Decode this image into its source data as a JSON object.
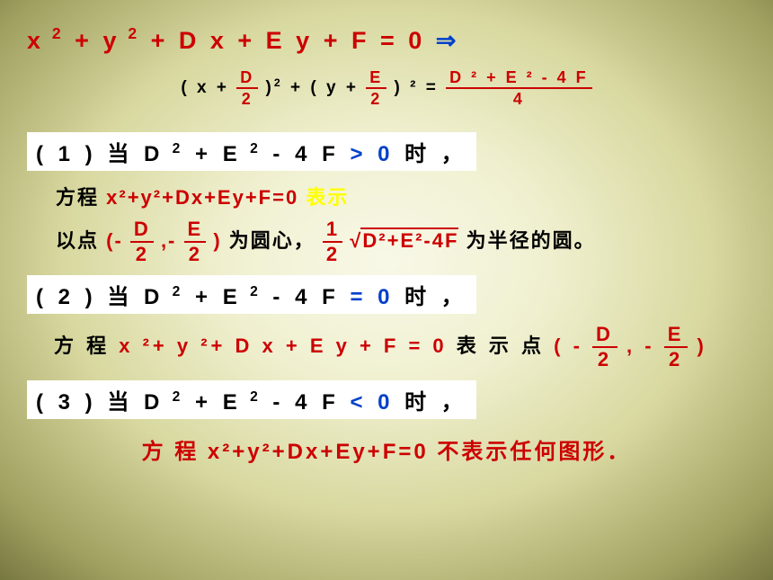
{
  "colors": {
    "red": "#cc0000",
    "blue": "#0040cc",
    "black": "#000000",
    "yellow": "#ffff00",
    "white_bg": "#ffffff"
  },
  "typography": {
    "main_eq_fontsize": 27,
    "frac_line_fontsize": 19,
    "case_fontsize": 24,
    "body_fontsize": 22,
    "final_fontsize": 24,
    "font_weight": "bold",
    "font_family": "Microsoft YaHei"
  },
  "bg_gradient": {
    "type": "radial",
    "center": "50% 45%",
    "stops": [
      "#f8f8e8",
      "#f0f0d0",
      "#d8d8a0",
      "#a0a060",
      "#606030",
      "#303018",
      "#0a0a05"
    ]
  },
  "eq_main_lhs": "x",
  "eq_main_t1": "+ y",
  "eq_main_t2": "+ D x + E y + F = 0 ",
  "implies": "⇒",
  "std_open1": "( x  +",
  "std_frac1_num": "D",
  "std_frac1_den": "2",
  "std_close1": ")",
  "std_plus": "+  ( y  +",
  "std_frac2_num": "E",
  "std_frac2_den": "2",
  "std_close2": ") ² =",
  "std_rhs_num": "D ² + E ² - 4  F",
  "std_rhs_den": "4",
  "case1_prefix": "( 1 ) 当   D",
  "case1_mid": " + E",
  "case1_suffix": " - 4 F",
  "case1_op": " >  0",
  "case1_end": " 时 ，",
  "line1a_p1": "方程",
  "line1a_eq": "x²+y²+Dx+Ey+F=0",
  "line1a_p2": "表示",
  "line1b_p1": "以点",
  "line1b_open": "(-",
  "line1b_f1n": "D",
  "line1b_f1d": "2",
  "line1b_comma": ",-",
  "line1b_f2n": "E",
  "line1b_f2d": "2",
  "line1b_close": ")",
  "line1b_p2": "为圆心，",
  "line1b_half_n": "1",
  "line1b_half_d": "2",
  "line1b_sqrt": "√",
  "line1b_rad": "D²+E²-4F",
  "line1b_p3": "为半径的圆。",
  "case2_prefix": "( 2 ) 当   D",
  "case2_mid": " + E",
  "case2_suffix": " - 4 F",
  "case2_op": " =  0",
  "case2_end": " 时  ，",
  "line2_p1": "方 程",
  "line2_eq": " x ²+ y ²+ D x + E y + F = 0 ",
  "line2_p2": "表 示 点",
  "line2_open": " ( -",
  "line2_f1n": "D",
  "line2_f1d": "2",
  "line2_comma": " , -",
  "line2_f2n": "E",
  "line2_f2d": "2",
  "line2_close": " )",
  "case3_prefix": "( 3 ) 当   D",
  "case3_mid": " + E",
  "case3_suffix": " - 4 F",
  "case3_op": " <  0",
  "case3_end": " 时 ，",
  "final_p1": "方 程",
  "final_eq": "x²+y²+Dx+Ey+F=0",
  "final_p2": "不表示任何图形．",
  "sup2": "2",
  "sup2wide": " 2"
}
